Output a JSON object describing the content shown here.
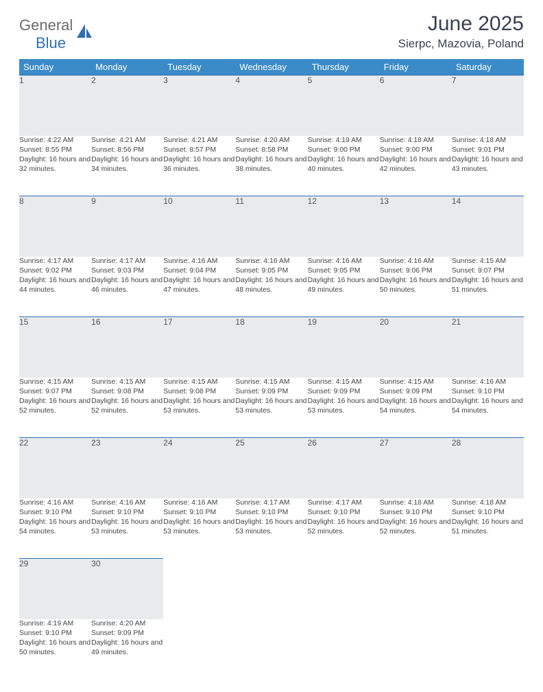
{
  "logo": {
    "part1": "General",
    "part2": "Blue"
  },
  "title": "June 2025",
  "location": "Sierpc, Mazovia, Poland",
  "colors": {
    "header_bg": "#3b8bc8",
    "header_fg": "#ffffff",
    "daynum_bg": "#e9eaec",
    "border_top": "#2f6fb2",
    "text": "#444444",
    "title": "#374151",
    "logo_gray": "#6a6a6a",
    "logo_blue": "#2f6fb2"
  },
  "weekdays": [
    "Sunday",
    "Monday",
    "Tuesday",
    "Wednesday",
    "Thursday",
    "Friday",
    "Saturday"
  ],
  "weeks": [
    [
      {
        "n": "1",
        "sr": "4:22 AM",
        "ss": "8:55 PM",
        "dl": "16 hours and 32 minutes."
      },
      {
        "n": "2",
        "sr": "4:21 AM",
        "ss": "8:56 PM",
        "dl": "16 hours and 34 minutes."
      },
      {
        "n": "3",
        "sr": "4:21 AM",
        "ss": "8:57 PM",
        "dl": "16 hours and 36 minutes."
      },
      {
        "n": "4",
        "sr": "4:20 AM",
        "ss": "8:58 PM",
        "dl": "16 hours and 38 minutes."
      },
      {
        "n": "5",
        "sr": "4:19 AM",
        "ss": "9:00 PM",
        "dl": "16 hours and 40 minutes."
      },
      {
        "n": "6",
        "sr": "4:18 AM",
        "ss": "9:00 PM",
        "dl": "16 hours and 42 minutes."
      },
      {
        "n": "7",
        "sr": "4:18 AM",
        "ss": "9:01 PM",
        "dl": "16 hours and 43 minutes."
      }
    ],
    [
      {
        "n": "8",
        "sr": "4:17 AM",
        "ss": "9:02 PM",
        "dl": "16 hours and 44 minutes."
      },
      {
        "n": "9",
        "sr": "4:17 AM",
        "ss": "9:03 PM",
        "dl": "16 hours and 46 minutes."
      },
      {
        "n": "10",
        "sr": "4:16 AM",
        "ss": "9:04 PM",
        "dl": "16 hours and 47 minutes."
      },
      {
        "n": "11",
        "sr": "4:16 AM",
        "ss": "9:05 PM",
        "dl": "16 hours and 48 minutes."
      },
      {
        "n": "12",
        "sr": "4:16 AM",
        "ss": "9:05 PM",
        "dl": "16 hours and 49 minutes."
      },
      {
        "n": "13",
        "sr": "4:16 AM",
        "ss": "9:06 PM",
        "dl": "16 hours and 50 minutes."
      },
      {
        "n": "14",
        "sr": "4:15 AM",
        "ss": "9:07 PM",
        "dl": "16 hours and 51 minutes."
      }
    ],
    [
      {
        "n": "15",
        "sr": "4:15 AM",
        "ss": "9:07 PM",
        "dl": "16 hours and 52 minutes."
      },
      {
        "n": "16",
        "sr": "4:15 AM",
        "ss": "9:08 PM",
        "dl": "16 hours and 52 minutes."
      },
      {
        "n": "17",
        "sr": "4:15 AM",
        "ss": "9:08 PM",
        "dl": "16 hours and 53 minutes."
      },
      {
        "n": "18",
        "sr": "4:15 AM",
        "ss": "9:09 PM",
        "dl": "16 hours and 53 minutes."
      },
      {
        "n": "19",
        "sr": "4:15 AM",
        "ss": "9:09 PM",
        "dl": "16 hours and 53 minutes."
      },
      {
        "n": "20",
        "sr": "4:15 AM",
        "ss": "9:09 PM",
        "dl": "16 hours and 54 minutes."
      },
      {
        "n": "21",
        "sr": "4:16 AM",
        "ss": "9:10 PM",
        "dl": "16 hours and 54 minutes."
      }
    ],
    [
      {
        "n": "22",
        "sr": "4:16 AM",
        "ss": "9:10 PM",
        "dl": "16 hours and 54 minutes."
      },
      {
        "n": "23",
        "sr": "4:16 AM",
        "ss": "9:10 PM",
        "dl": "16 hours and 53 minutes."
      },
      {
        "n": "24",
        "sr": "4:16 AM",
        "ss": "9:10 PM",
        "dl": "16 hours and 53 minutes."
      },
      {
        "n": "25",
        "sr": "4:17 AM",
        "ss": "9:10 PM",
        "dl": "16 hours and 53 minutes."
      },
      {
        "n": "26",
        "sr": "4:17 AM",
        "ss": "9:10 PM",
        "dl": "16 hours and 52 minutes."
      },
      {
        "n": "27",
        "sr": "4:18 AM",
        "ss": "9:10 PM",
        "dl": "16 hours and 52 minutes."
      },
      {
        "n": "28",
        "sr": "4:18 AM",
        "ss": "9:10 PM",
        "dl": "16 hours and 51 minutes."
      }
    ],
    [
      {
        "n": "29",
        "sr": "4:19 AM",
        "ss": "9:10 PM",
        "dl": "16 hours and 50 minutes."
      },
      {
        "n": "30",
        "sr": "4:20 AM",
        "ss": "9:09 PM",
        "dl": "16 hours and 49 minutes."
      },
      null,
      null,
      null,
      null,
      null
    ]
  ],
  "labels": {
    "sunrise": "Sunrise: ",
    "sunset": "Sunset: ",
    "daylight": "Daylight: "
  }
}
